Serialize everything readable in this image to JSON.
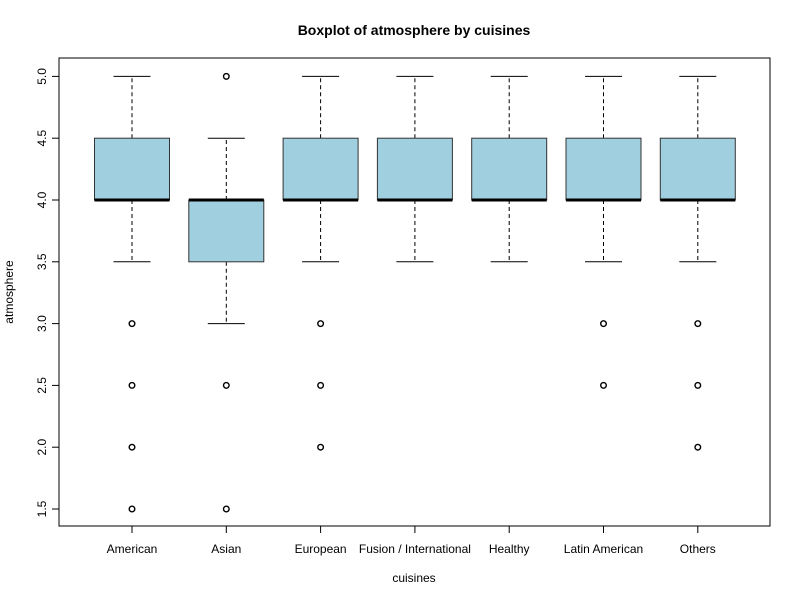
{
  "chart_data": {
    "type": "boxplot",
    "title": "Boxplot of atmosphere by cuisines",
    "xlabel": "cuisines",
    "ylabel": "atmosphere",
    "ylim": [
      1.35,
      5.15
    ],
    "yticks": [
      1.5,
      2.0,
      2.5,
      3.0,
      3.5,
      4.0,
      4.5,
      5.0
    ],
    "ytick_labels": [
      "1.5",
      "2.0",
      "2.5",
      "3.0",
      "3.5",
      "4.0",
      "4.5",
      "5.0"
    ],
    "box_color": "#a0cfe0",
    "categories": [
      "American",
      "Asian",
      "European",
      "Fusion / International",
      "Healthy",
      "Latin American",
      "Others"
    ],
    "boxes": [
      {
        "category": "American",
        "whisker_low": 3.5,
        "q1": 4.0,
        "median": 4.0,
        "q3": 4.5,
        "whisker_high": 5.0,
        "outliers": [
          3.0,
          2.5,
          2.0,
          1.5
        ]
      },
      {
        "category": "Asian",
        "whisker_low": 3.0,
        "q1": 3.5,
        "median": 4.0,
        "q3": 4.0,
        "whisker_high": 4.5,
        "outliers": [
          5.0,
          2.5,
          1.5
        ]
      },
      {
        "category": "European",
        "whisker_low": 3.5,
        "q1": 4.0,
        "median": 4.0,
        "q3": 4.5,
        "whisker_high": 5.0,
        "outliers": [
          3.0,
          2.5,
          2.0
        ]
      },
      {
        "category": "Fusion / International",
        "whisker_low": 3.5,
        "q1": 4.0,
        "median": 4.0,
        "q3": 4.5,
        "whisker_high": 5.0,
        "outliers": []
      },
      {
        "category": "Healthy",
        "whisker_low": 3.5,
        "q1": 4.0,
        "median": 4.0,
        "q3": 4.5,
        "whisker_high": 5.0,
        "outliers": []
      },
      {
        "category": "Latin American",
        "whisker_low": 3.5,
        "q1": 4.0,
        "median": 4.0,
        "q3": 4.5,
        "whisker_high": 5.0,
        "outliers": [
          3.0,
          2.5
        ]
      },
      {
        "category": "Others",
        "whisker_low": 3.5,
        "q1": 4.0,
        "median": 4.0,
        "q3": 4.5,
        "whisker_high": 5.0,
        "outliers": [
          3.0,
          2.5,
          2.0
        ]
      }
    ]
  }
}
